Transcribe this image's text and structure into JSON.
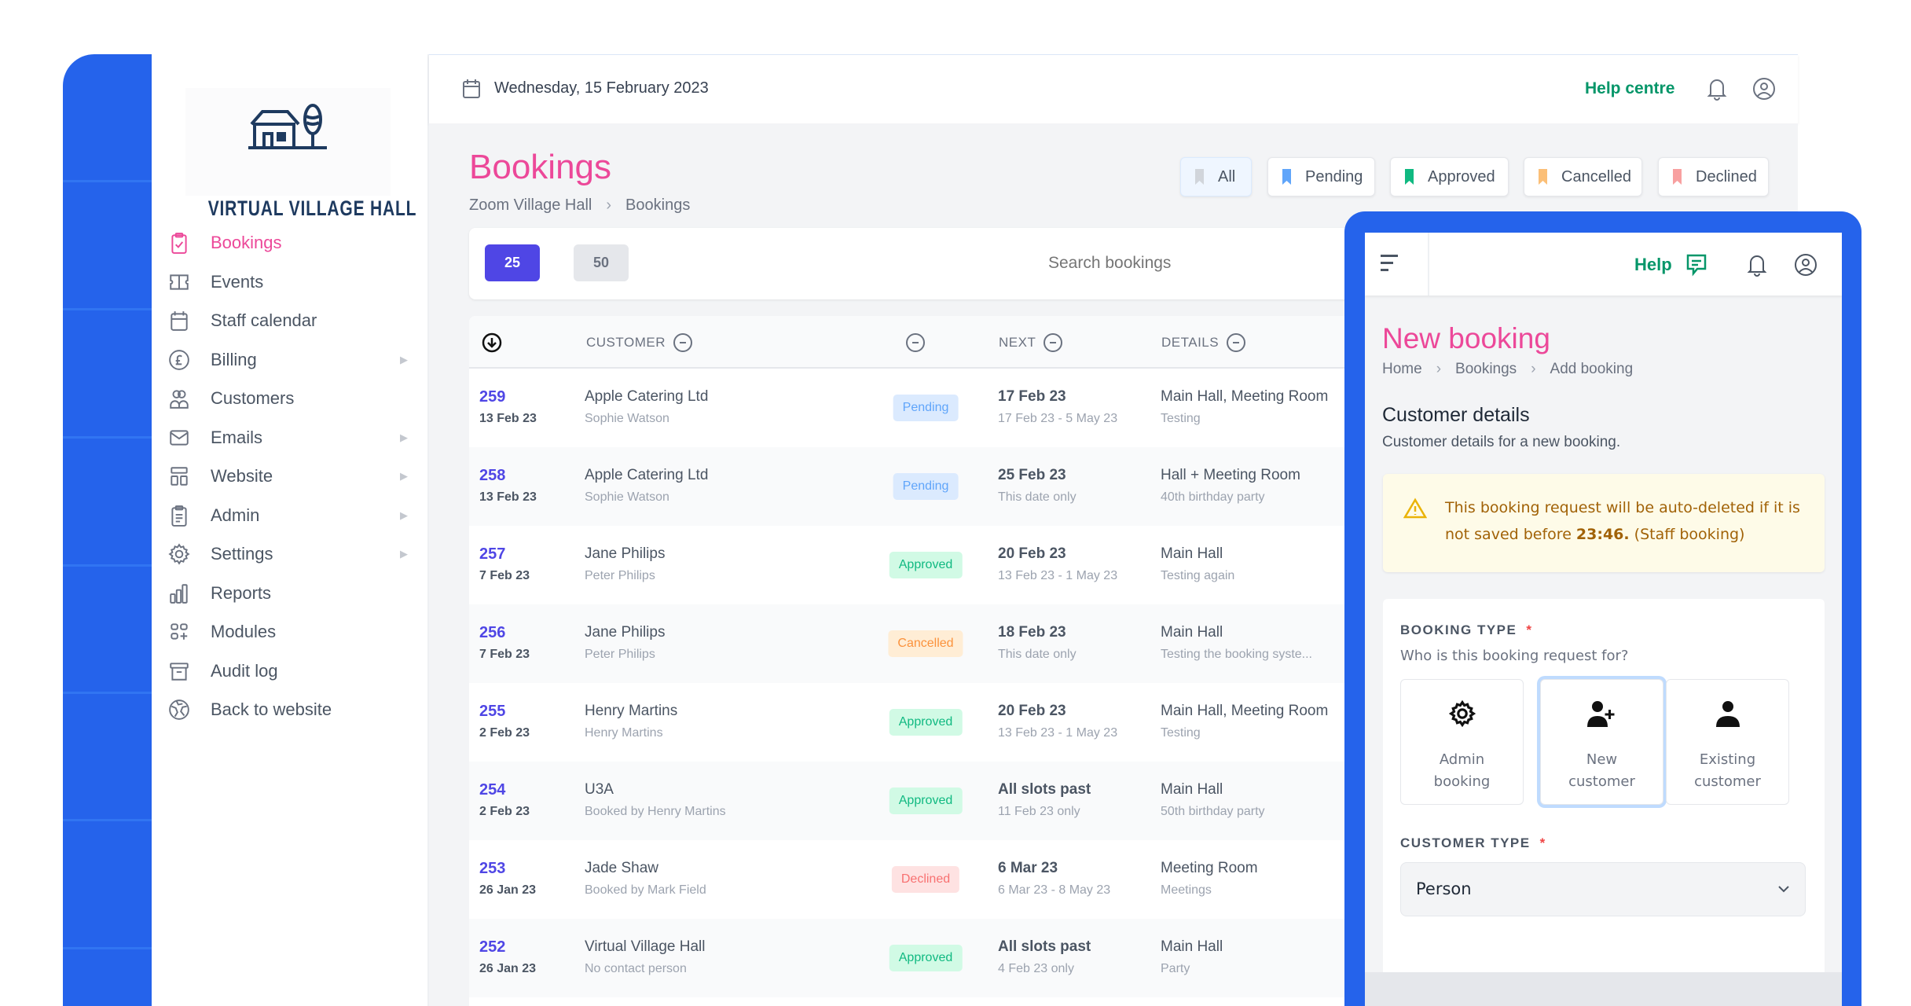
{
  "brand": {
    "name": "VIRTUAL VILLAGE HALL",
    "blue": "#2563eb",
    "pink": "#ec4899",
    "green": "#059669",
    "indigo": "#4f46e5"
  },
  "sidebar": {
    "items": [
      {
        "label": "Bookings",
        "icon": "clipboard-check-icon",
        "active": true,
        "arrow": false
      },
      {
        "label": "Events",
        "icon": "ticket-icon",
        "arrow": false
      },
      {
        "label": "Staff calendar",
        "icon": "calendar-icon",
        "arrow": false
      },
      {
        "label": "Billing",
        "icon": "pound-icon",
        "arrow": true
      },
      {
        "label": "Customers",
        "icon": "users-icon",
        "arrow": false
      },
      {
        "label": "Emails",
        "icon": "mail-icon",
        "arrow": true
      },
      {
        "label": "Website",
        "icon": "layout-icon",
        "arrow": true
      },
      {
        "label": "Admin",
        "icon": "clipboard-list-icon",
        "arrow": true
      },
      {
        "label": "Settings",
        "icon": "gear-icon",
        "arrow": true
      },
      {
        "label": "Reports",
        "icon": "bar-chart-icon",
        "arrow": false
      },
      {
        "label": "Modules",
        "icon": "modules-icon",
        "arrow": false
      },
      {
        "label": "Audit log",
        "icon": "archive-icon",
        "arrow": false
      },
      {
        "label": "Back to website",
        "icon": "globe-icon",
        "arrow": false
      }
    ]
  },
  "header": {
    "date": "Wednesday, 15 February 2023",
    "help": "Help centre"
  },
  "page": {
    "title": "Bookings",
    "breadcrumb": [
      "Zoom Village Hall",
      "Bookings"
    ]
  },
  "filters": [
    {
      "label": "All",
      "color": "#d1d5db",
      "selected": true
    },
    {
      "label": "Pending",
      "color": "#60a5fa"
    },
    {
      "label": "Approved",
      "color": "#10b981"
    },
    {
      "label": "Cancelled",
      "color": "#fbbf77"
    },
    {
      "label": "Declined",
      "color": "#f8a0a0"
    }
  ],
  "pagination": {
    "options": [
      "25",
      "50"
    ],
    "selected": "25"
  },
  "search": {
    "placeholder": "Search bookings"
  },
  "table": {
    "headers": {
      "customer": "CUSTOMER",
      "next": "NEXT",
      "details": "DETAILS"
    },
    "rows": [
      {
        "id": "259",
        "date": "13 Feb 23",
        "customer": "Apple Catering Ltd",
        "contact": "Sophie Watson",
        "status": "Pending",
        "next": "17 Feb 23",
        "range": "17 Feb 23 - 5 May 23",
        "rooms": "Main Hall, Meeting Room",
        "note": "Testing"
      },
      {
        "id": "258",
        "date": "13 Feb 23",
        "customer": "Apple Catering Ltd",
        "contact": "Sophie Watson",
        "status": "Pending",
        "next": "25 Feb 23",
        "range": "This date only",
        "rooms": "Hall + Meeting Room",
        "note": "40th birthday party"
      },
      {
        "id": "257",
        "date": "7 Feb 23",
        "customer": "Jane Philips",
        "contact": "Peter Philips",
        "status": "Approved",
        "next": "20 Feb 23",
        "range": "13 Feb 23 - 1 May 23",
        "rooms": "Main Hall",
        "note": "Testing again"
      },
      {
        "id": "256",
        "date": "7 Feb 23",
        "customer": "Jane Philips",
        "contact": "Peter Philips",
        "status": "Cancelled",
        "next": "18 Feb 23",
        "range": "This date only",
        "rooms": "Main Hall",
        "note": "Testing the booking syste..."
      },
      {
        "id": "255",
        "date": "2 Feb 23",
        "customer": "Henry Martins",
        "contact": "Henry Martins",
        "status": "Approved",
        "next": "20 Feb 23",
        "range": "13 Feb 23 - 1 May 23",
        "rooms": "Main Hall, Meeting Room",
        "note": "Testing"
      },
      {
        "id": "254",
        "date": "2 Feb 23",
        "customer": "U3A",
        "contact": "Booked by Henry Martins",
        "status": "Approved",
        "next": "All slots past",
        "range": "11 Feb 23 only",
        "rooms": "Main Hall",
        "note": "50th birthday party"
      },
      {
        "id": "253",
        "date": "26 Jan 23",
        "customer": "Jade Shaw",
        "contact": "Booked by Mark Field",
        "status": "Declined",
        "next": "6 Mar 23",
        "range": "6 Mar 23 - 8 May 23",
        "rooms": "Meeting Room",
        "note": "Meetings"
      },
      {
        "id": "252",
        "date": "26 Jan 23",
        "customer": "Virtual Village Hall",
        "contact": "No contact person",
        "status": "Approved",
        "next": "All slots past",
        "range": "4 Feb 23 only",
        "rooms": "Main Hall",
        "note": "Party"
      }
    ]
  },
  "status_colors": {
    "Pending": {
      "bg": "#dbeafe",
      "fg": "#60a5fa"
    },
    "Approved": {
      "bg": "#d1fae5",
      "fg": "#10b981"
    },
    "Cancelled": {
      "bg": "#ffedd5",
      "fg": "#fb923c"
    },
    "Declined": {
      "bg": "#fee2e2",
      "fg": "#f87171"
    }
  },
  "panel": {
    "help": "Help",
    "title": "New booking",
    "breadcrumb": [
      "Home",
      "Bookings",
      "Add booking"
    ],
    "section_title": "Customer details",
    "section_sub": "Customer details for a new booking.",
    "warning_pre": "This booking request will be auto-deleted if it is not saved before ",
    "warning_time": "23:46.",
    "warning_post": " (Staff booking)",
    "booking_type_label": "BOOKING TYPE",
    "required": "*",
    "booking_type_question": "Who is this booking request for?",
    "options": [
      {
        "line1": "Admin",
        "line2": "booking",
        "icon": "gear-icon"
      },
      {
        "line1": "New",
        "line2": "customer",
        "icon": "user-plus-icon",
        "selected": true
      },
      {
        "line1": "Existing",
        "line2": "customer",
        "icon": "user-icon"
      }
    ],
    "customer_type_label": "CUSTOMER TYPE",
    "customer_type_value": "Person"
  }
}
